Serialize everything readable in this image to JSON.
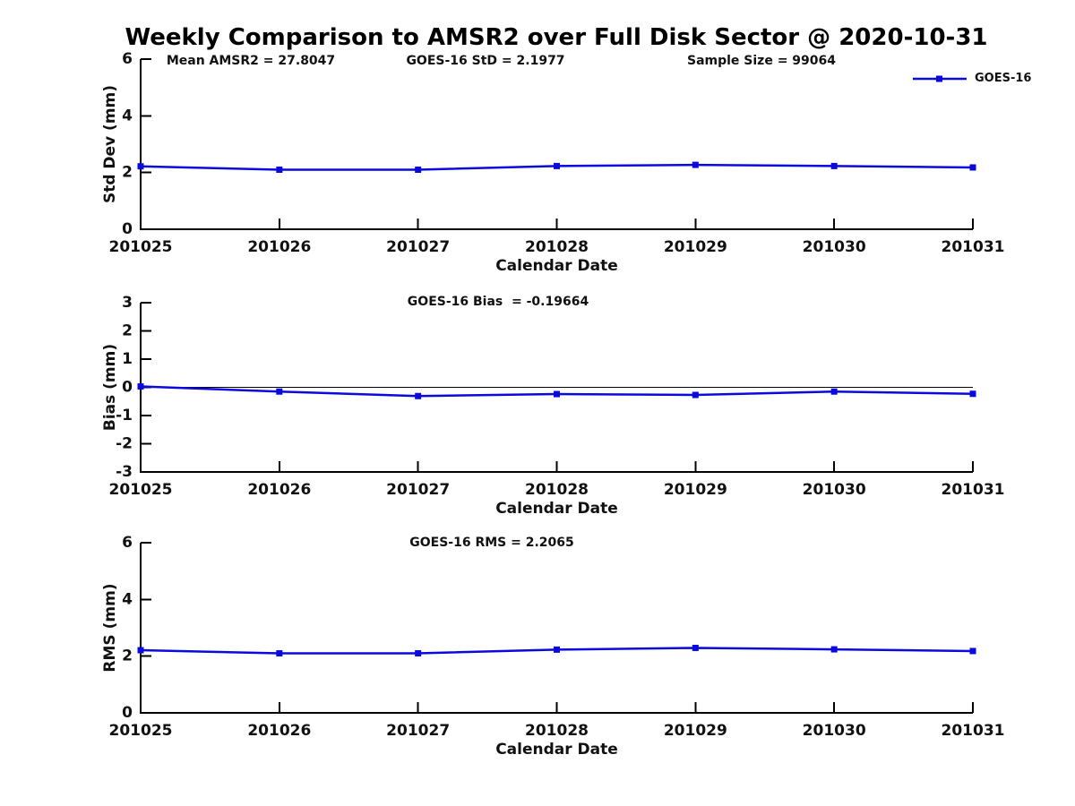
{
  "figure": {
    "title": "Weekly Comparison to AMSR2 over Full Disk Sector @ 2020-10-31"
  },
  "legend": {
    "label": "GOES-16",
    "color": "#0a0ade"
  },
  "chart_data": [
    {
      "type": "line",
      "subplot": "std-dev",
      "annotations": [
        "Mean AMSR2 = 27.8047",
        "GOES-16 StD = 2.1977",
        "Sample Size = 99064"
      ],
      "categories": [
        "201025",
        "201026",
        "201027",
        "201028",
        "201029",
        "201030",
        "201031"
      ],
      "series": [
        {
          "name": "GOES-16",
          "color": "#0a0ade",
          "marker": "square",
          "values": [
            2.22,
            2.1,
            2.1,
            2.23,
            2.27,
            2.23,
            2.18
          ]
        }
      ],
      "xlabel": "Calendar Date",
      "ylabel": "Std Dev (mm)",
      "ylim": [
        0,
        6
      ],
      "yticks": [
        0,
        2,
        4,
        6
      ],
      "zero_line": false,
      "legend_position": "top-right",
      "grid": false
    },
    {
      "type": "line",
      "subplot": "bias",
      "title": "GOES-16 Bias  = -0.19664",
      "categories": [
        "201025",
        "201026",
        "201027",
        "201028",
        "201029",
        "201030",
        "201031"
      ],
      "series": [
        {
          "name": "GOES-16",
          "color": "#0a0ade",
          "marker": "square",
          "values": [
            0.03,
            -0.15,
            -0.31,
            -0.24,
            -0.27,
            -0.15,
            -0.23
          ]
        }
      ],
      "xlabel": "Calendar Date",
      "ylabel": "Bias (mm)",
      "ylim": [
        -3,
        3
      ],
      "yticks": [
        -3,
        -2,
        -1,
        0,
        1,
        2,
        3
      ],
      "zero_line": true,
      "grid": false
    },
    {
      "type": "line",
      "subplot": "rms",
      "title": "GOES-16 RMS = 2.2065",
      "categories": [
        "201025",
        "201026",
        "201027",
        "201028",
        "201029",
        "201030",
        "201031"
      ],
      "series": [
        {
          "name": "GOES-16",
          "color": "#0a0ade",
          "marker": "square",
          "values": [
            2.21,
            2.1,
            2.1,
            2.23,
            2.29,
            2.24,
            2.18
          ]
        }
      ],
      "xlabel": "Calendar Date",
      "ylabel": "RMS (mm)",
      "ylim": [
        0,
        6
      ],
      "yticks": [
        0,
        2,
        4,
        6
      ],
      "zero_line": false,
      "grid": false
    }
  ]
}
